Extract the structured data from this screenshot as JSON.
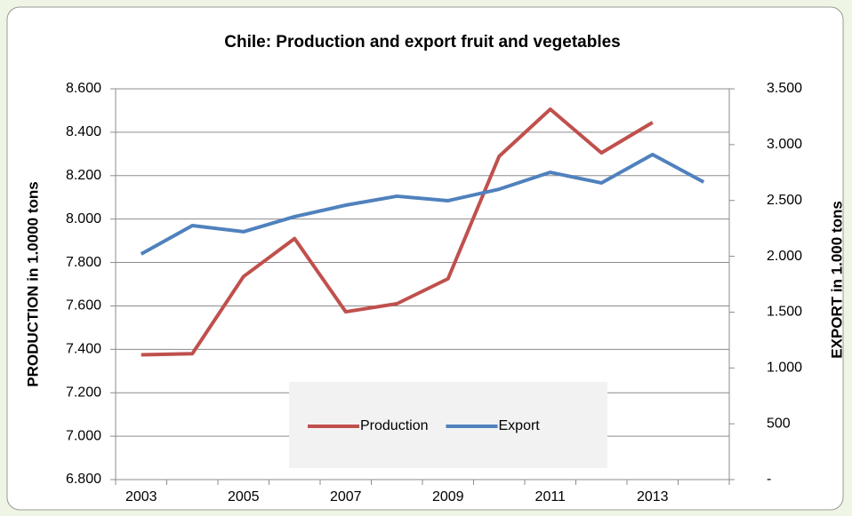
{
  "chart_data": {
    "type": "line",
    "title": "Chile: Production and export fruit and vegetables",
    "ylabel": "PRODUCTION in 1.0000 tons",
    "y2label": "EXPORT in 1.000 tons",
    "categories": [
      "2003",
      null,
      "2005",
      null,
      "2007",
      null,
      "2009",
      null,
      "2011",
      null,
      "2013",
      null
    ],
    "series": [
      {
        "name": "Production",
        "color": "#c0504d",
        "values": [
          7375,
          7380,
          7735,
          7910,
          7573,
          7610,
          7725,
          8289,
          8506,
          8305,
          8445,
          null
        ]
      },
      {
        "name": "Export",
        "color": "#4f81bd",
        "axis": "y2",
        "values": [
          2020,
          2275,
          2220,
          2355,
          2458,
          2538,
          2498,
          2601,
          2752,
          2657,
          2911,
          2665
        ]
      }
    ],
    "ylim": [
      6800,
      8600
    ],
    "yticks": [
      {
        "value": 6800,
        "label": "6.800"
      },
      {
        "value": 7000,
        "label": "7.000"
      },
      {
        "value": 7200,
        "label": "7.200"
      },
      {
        "value": 7400,
        "label": "7.400"
      },
      {
        "value": 7600,
        "label": "7.600"
      },
      {
        "value": 7800,
        "label": "7.800"
      },
      {
        "value": 8000,
        "label": "8.000"
      },
      {
        "value": 8200,
        "label": "8.200"
      },
      {
        "value": 8400,
        "label": "8.400"
      },
      {
        "value": 8600,
        "label": "8.600"
      }
    ],
    "y2lim": [
      0,
      3500
    ],
    "y2ticks": [
      {
        "value": 0,
        "label": "-"
      },
      500,
      {
        "value": 1000,
        "label": "1.000"
      },
      {
        "value": 1500,
        "label": "1.500"
      },
      {
        "value": 2000,
        "label": "2.000"
      },
      {
        "value": 2500,
        "label": "2.500"
      },
      {
        "value": 3000,
        "label": "3.000"
      },
      {
        "value": 3500,
        "label": "3.500"
      }
    ],
    "grid": true,
    "legend": "bottom"
  }
}
